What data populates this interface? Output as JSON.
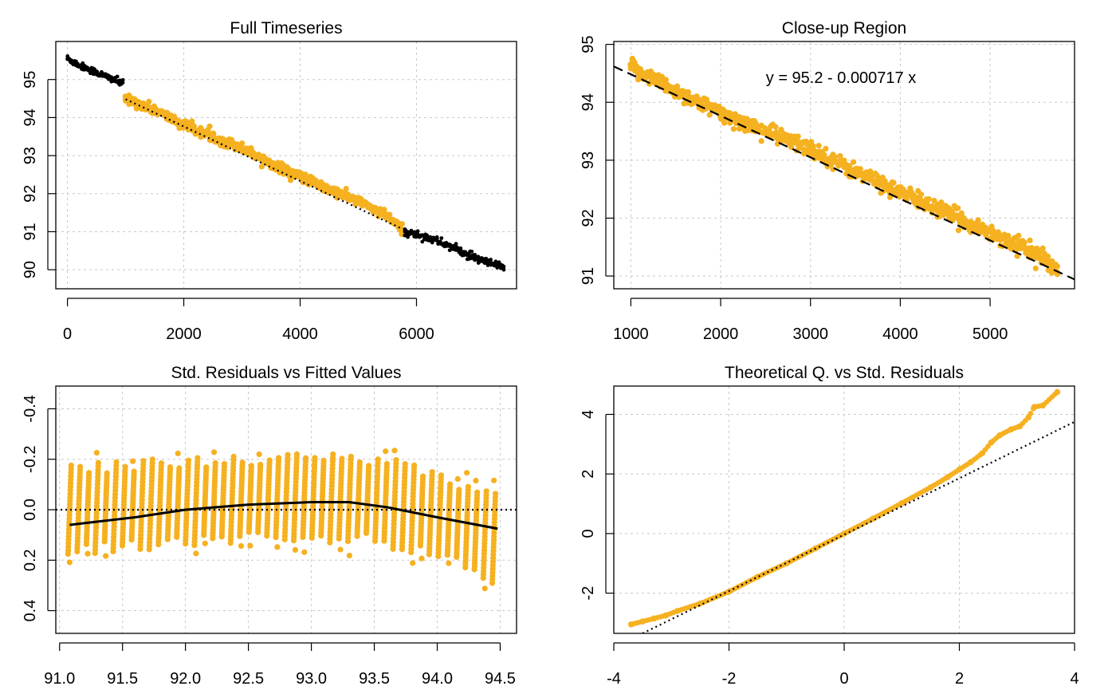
{
  "colors": {
    "orange": "#F5B120",
    "black": "#000000",
    "grid": "#C8C8C8"
  },
  "chart_data": [
    {
      "id": "p1",
      "type": "scatter",
      "title": "Full Timeseries",
      "xlabel": "",
      "ylabel": "",
      "xlim": [
        -200,
        7720
      ],
      "ylim": [
        89.5,
        96.0
      ],
      "xticks": [
        0,
        2000,
        4000,
        6000
      ],
      "yticks": [
        90,
        91,
        92,
        93,
        94,
        95
      ],
      "grid": true,
      "series": [
        {
          "color": "black",
          "x": [
            0,
            200,
            400,
            600,
            800,
            950
          ],
          "y": [
            95.55,
            95.38,
            95.25,
            95.12,
            95.0,
            94.88
          ],
          "spread": 0.13
        },
        {
          "color": "orange",
          "x": [
            1000,
            1500,
            2000,
            2500,
            3000,
            3500,
            4000,
            4500,
            5000,
            5500,
            5750
          ],
          "y": [
            94.5,
            94.2,
            93.8,
            93.5,
            93.2,
            92.8,
            92.45,
            92.1,
            91.8,
            91.4,
            91.05
          ],
          "spread": 0.18
        },
        {
          "color": "black",
          "x": [
            5800,
            6200,
            6600,
            7000,
            7500
          ],
          "y": [
            91.0,
            90.85,
            90.6,
            90.3,
            90.05
          ],
          "spread": 0.15
        }
      ],
      "lines": [
        {
          "style": "dotted",
          "x": [
            1000,
            5750
          ],
          "y": [
            94.483,
            91.078
          ]
        }
      ]
    },
    {
      "id": "p2",
      "type": "scatter",
      "title": "Close-up Region",
      "annotation": "y = 95.2 - 0.000717 x",
      "xlabel": "",
      "ylabel": "",
      "xlim": [
        810,
        5940
      ],
      "ylim": [
        90.78,
        95.05
      ],
      "xticks": [
        1000,
        2000,
        3000,
        4000,
        5000
      ],
      "yticks": [
        91,
        92,
        93,
        94,
        95
      ],
      "grid": true,
      "series": [
        {
          "color": "orange",
          "x": [
            1000,
            1200,
            1500,
            2000,
            2500,
            3000,
            3500,
            4000,
            4500,
            5000,
            5500,
            5750
          ],
          "y": [
            94.6,
            94.45,
            94.2,
            93.8,
            93.5,
            93.2,
            92.8,
            92.45,
            92.1,
            91.75,
            91.4,
            91.1
          ],
          "spread": 0.2
        }
      ],
      "lines": [
        {
          "style": "dashed",
          "x": [
            810,
            5940
          ],
          "y": [
            94.619,
            90.941
          ]
        }
      ]
    },
    {
      "id": "p3",
      "type": "scatter",
      "title": "Std. Residuals vs Fitted Values",
      "xlabel": "",
      "ylabel": "",
      "xlim": [
        90.97,
        94.63
      ],
      "ylim": [
        0.49,
        -0.49
      ],
      "y_reversed": true,
      "xticks": [
        "91.0",
        "91.5",
        "92.0",
        "92.5",
        "93.0",
        "93.5",
        "94.0",
        "94.5"
      ],
      "yticks": [
        "-0.4",
        "-0.2",
        "0.0",
        "0.2",
        "0.4"
      ],
      "grid": true,
      "series": [
        {
          "color": "orange",
          "x_range": [
            91.08,
            94.48
          ],
          "streak_spacing": 0.0717,
          "streak_slope": -0.0717,
          "band_center": [
            0.0,
            -0.03,
            -0.05,
            -0.04,
            0.02,
            0.12
          ],
          "band_center_x": [
            91.08,
            92.0,
            92.8,
            93.5,
            94.0,
            94.48
          ]
        }
      ],
      "lines": [
        {
          "style": "dotted",
          "x": [
            90.97,
            94.63
          ],
          "y": [
            0,
            0
          ]
        },
        {
          "style": "solid",
          "x": [
            91.08,
            91.6,
            92.0,
            92.5,
            93.0,
            93.3,
            93.6,
            94.0,
            94.48
          ],
          "y": [
            0.06,
            0.03,
            0.0,
            -0.02,
            -0.03,
            -0.03,
            -0.01,
            0.03,
            0.075
          ]
        }
      ]
    },
    {
      "id": "p4",
      "type": "scatter",
      "title": "Theoretical Q. vs Std. Residuals",
      "xlabel": "",
      "ylabel": "",
      "xlim": [
        -4,
        4
      ],
      "ylim": [
        -3.35,
        4.95
      ],
      "xticks": [
        -4,
        -2,
        0,
        2,
        4
      ],
      "yticks": [
        -2,
        0,
        2,
        4
      ],
      "grid": true,
      "series": [
        {
          "color": "orange",
          "x": [
            -3.7,
            -3.5,
            -3.3,
            -3.1,
            -2.9,
            -2.5,
            -2.0,
            -1.5,
            -1.0,
            -0.5,
            0.0,
            0.5,
            1.0,
            1.5,
            1.8,
            2.0,
            2.2,
            2.4,
            2.55,
            2.7,
            2.9,
            3.05,
            3.2,
            3.3,
            3.45,
            3.7
          ],
          "y": [
            -3.05,
            -2.95,
            -2.85,
            -2.75,
            -2.6,
            -2.35,
            -1.95,
            -1.45,
            -1.0,
            -0.5,
            0.0,
            0.5,
            1.02,
            1.55,
            1.9,
            2.15,
            2.4,
            2.7,
            3.05,
            3.3,
            3.5,
            3.6,
            3.9,
            4.25,
            4.3,
            4.75
          ]
        }
      ],
      "lines": [
        {
          "style": "dotted",
          "x": [
            -3.5,
            4
          ],
          "y": [
            -3.35,
            3.75
          ]
        }
      ]
    }
  ]
}
